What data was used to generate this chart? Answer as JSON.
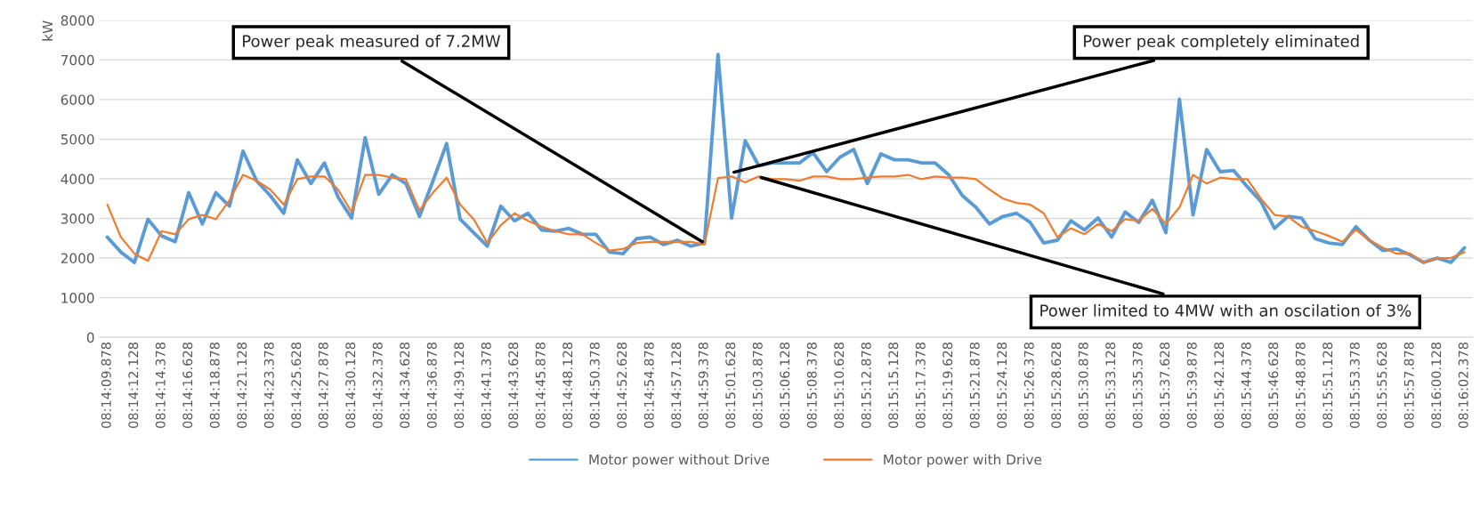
{
  "chart_data": {
    "type": "line",
    "ylabel": "kW",
    "categories": [
      "08:14:09.878",
      null,
      "08:14:12.128",
      null,
      "08:14:14.378",
      null,
      "08:14:16.628",
      null,
      "08:14:18.878",
      null,
      "08:14:21.128",
      null,
      "08:14:23.378",
      null,
      "08:14:25.628",
      null,
      "08:14:27.878",
      null,
      "08:14:30.128",
      null,
      "08:14:32.378",
      null,
      "08:14:34.628",
      null,
      "08:14:36.878",
      null,
      "08:14:39.128",
      null,
      "08:14:41.378",
      null,
      "08:14:43.628",
      null,
      "08:14:45.878",
      null,
      "08:14:48.128",
      null,
      "08:14:50.378",
      null,
      "08:14:52.628",
      null,
      "08:14:54.878",
      null,
      "08:14:57.128",
      null,
      "08:14:59.378",
      null,
      "08:15:01.628",
      null,
      "08:15:03.878",
      null,
      "08:15:06.128",
      null,
      "08:15:08.378",
      null,
      "08:15:10.628",
      null,
      "08:15:12.878",
      null,
      "08:15:15.128",
      null,
      "08:15:17.378",
      null,
      "08:15:19.628",
      null,
      "08:15:21.878",
      null,
      "08:15:24.128",
      null,
      "08:15:26.378",
      null,
      "08:15:28.628",
      null,
      "08:15:30.878",
      null,
      "08:15:33.128",
      null,
      "08:15:35.378",
      null,
      "08:15:37.628",
      null,
      "08:15:39.878",
      null,
      "08:15:42.128",
      null,
      "08:15:44.378",
      null,
      "08:15:46.628",
      null,
      "08:15:48.878",
      null,
      "08:15:51.128",
      null,
      "08:15:53.378",
      null,
      "08:15:55.628",
      null,
      "08:15:57.878",
      null,
      "08:16:00.128",
      null,
      "08:16:02.378"
    ],
    "ylim": [
      0,
      8000
    ],
    "yticks": [
      0,
      1000,
      2000,
      3000,
      4000,
      5000,
      6000,
      7000,
      8000
    ],
    "grid": "y",
    "legend": "bottom",
    "marker": "none",
    "line_style": "solid",
    "series": [
      {
        "name": "Motor power without Drive",
        "color": "#5b9bd5",
        "values": [
          2530,
          2150,
          1890,
          2980,
          2560,
          2410,
          3650,
          2860,
          3650,
          3310,
          4700,
          3950,
          3580,
          3130,
          4480,
          3880,
          4400,
          3540,
          3010,
          5040,
          3610,
          4100,
          3880,
          3050,
          3950,
          4890,
          2980,
          2640,
          2300,
          3310,
          2940,
          3130,
          2710,
          2680,
          2750,
          2600,
          2600,
          2150,
          2110,
          2490,
          2530,
          2340,
          2450,
          2300,
          2380,
          7140,
          3010,
          4960,
          4330,
          4400,
          4400,
          4400,
          4660,
          4180,
          4550,
          4740,
          3880,
          4630,
          4480,
          4480,
          4400,
          4400,
          4100,
          3580,
          3280,
          2860,
          3050,
          3130,
          2900,
          2380,
          2450,
          2940,
          2710,
          3010,
          2530,
          3160,
          2900,
          3460,
          2640,
          6010,
          3090,
          4740,
          4180,
          4210,
          3800,
          3430,
          2750,
          3050,
          3010,
          2490,
          2380,
          2340,
          2790,
          2450,
          2190,
          2230,
          2080,
          1890,
          2000,
          1890,
          2260
        ]
      },
      {
        "name": "Motor power with Drive",
        "color": "#ed7d31",
        "values": [
          3350,
          2530,
          2110,
          1930,
          2680,
          2600,
          2980,
          3090,
          2980,
          3460,
          4100,
          3950,
          3730,
          3350,
          3990,
          4060,
          4060,
          3730,
          3160,
          4100,
          4100,
          4030,
          3990,
          3200,
          3650,
          4030,
          3350,
          2980,
          2380,
          2830,
          3130,
          2940,
          2790,
          2680,
          2600,
          2600,
          2380,
          2190,
          2230,
          2380,
          2410,
          2410,
          2410,
          2410,
          2340,
          4020,
          4060,
          3910,
          4060,
          3990,
          3990,
          3950,
          4060,
          4060,
          3990,
          3990,
          4030,
          4060,
          4060,
          4100,
          3990,
          4060,
          4030,
          4030,
          3990,
          3730,
          3500,
          3390,
          3350,
          3130,
          2530,
          2750,
          2600,
          2860,
          2680,
          2980,
          2940,
          3240,
          2860,
          3280,
          4100,
          3880,
          4030,
          3990,
          3990,
          3500,
          3090,
          3050,
          2790,
          2680,
          2560,
          2410,
          2710,
          2450,
          2260,
          2110,
          2110,
          1890,
          2000,
          2000,
          2150
        ]
      }
    ],
    "annotations": [
      {
        "text": "Power peak measured of 7.2MW",
        "x": "08:14:59.378",
        "y": 2380
      },
      {
        "text": "Power peak completely eliminated",
        "x": "08:15:01.628",
        "y": 4150
      },
      {
        "text": "Power limited to 4MW with an oscilation of 3%",
        "x": "08:15:03.878",
        "y": 4050
      }
    ]
  }
}
